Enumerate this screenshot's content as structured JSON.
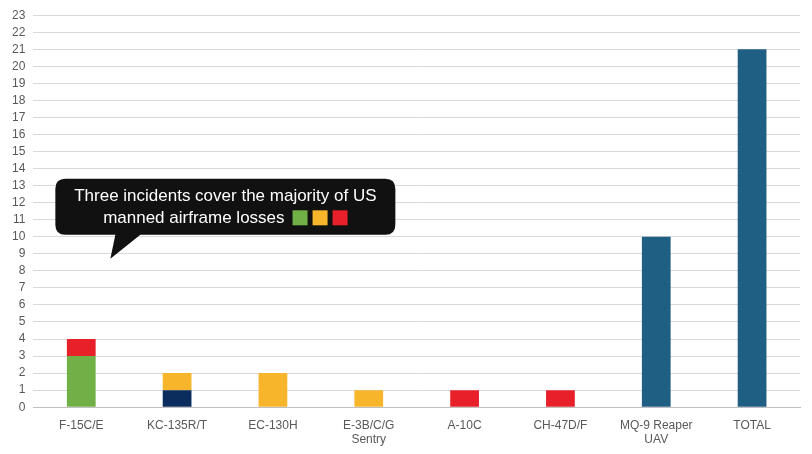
{
  "chart_data": {
    "type": "bar",
    "categories": [
      "F-15C/E",
      "KC-135R/T",
      "EC-130H",
      "E-3B/C/G Sentry",
      "A-10C",
      "CH-47D/F",
      "MQ-9 Reaper UAV",
      "TOTAL"
    ],
    "series": [
      {
        "color": "#1f5f83",
        "values": [
          null,
          null,
          null,
          null,
          null,
          null,
          10,
          21
        ]
      },
      {
        "color": "#70b046",
        "values": [
          3,
          null,
          null,
          null,
          null,
          null,
          null,
          null
        ]
      },
      {
        "color": "#0b2d5e",
        "values": [
          null,
          1,
          null,
          null,
          null,
          null,
          null,
          null
        ]
      },
      {
        "color": "#f7b52b",
        "values": [
          null,
          1,
          2,
          1,
          null,
          null,
          null,
          null
        ]
      },
      {
        "color": "#e8202a",
        "values": [
          1,
          null,
          null,
          null,
          1,
          1,
          null,
          null
        ]
      }
    ],
    "stacked": true,
    "ylim": [
      0,
      23
    ],
    "yticks": [
      0,
      1,
      2,
      3,
      4,
      5,
      6,
      7,
      8,
      9,
      10,
      11,
      12,
      13,
      14,
      15,
      16,
      17,
      18,
      19,
      20,
      21,
      22,
      23
    ],
    "grid": true,
    "annotation": {
      "text": "Three incidents cover the majority of US manned airframe losses",
      "colors": [
        "#70b046",
        "#f7b52b",
        "#e8202a"
      ]
    }
  }
}
